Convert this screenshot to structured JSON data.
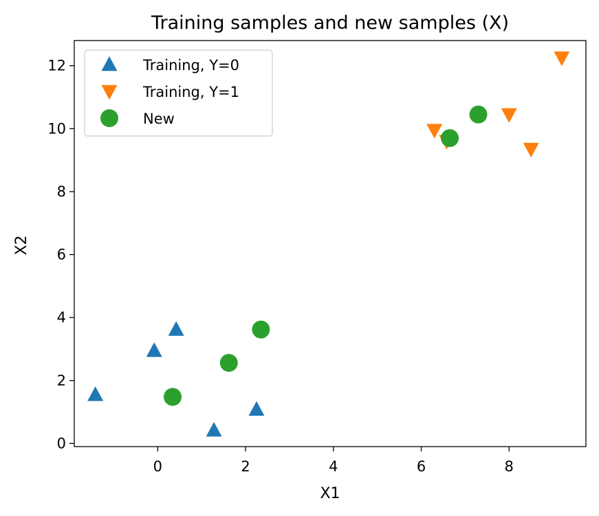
{
  "chart_data": {
    "type": "scatter",
    "title": "Training samples and new samples (X)",
    "xlabel": "X1",
    "ylabel": "X2",
    "xlim": [
      -1.9,
      9.75
    ],
    "ylim": [
      -0.1,
      12.8
    ],
    "xticks": [
      0,
      2,
      4,
      6,
      8
    ],
    "yticks": [
      0,
      2,
      4,
      6,
      8,
      10,
      12
    ],
    "grid": false,
    "legend_position": "upper-left",
    "series": [
      {
        "name": "Training, Y=0",
        "marker": "triangle-up",
        "color": "#1f77b4",
        "points": [
          {
            "x": -1.42,
            "y": 1.55
          },
          {
            "x": -0.08,
            "y": 2.95
          },
          {
            "x": 0.42,
            "y": 3.62
          },
          {
            "x": 1.28,
            "y": 0.42
          },
          {
            "x": 2.25,
            "y": 1.08
          }
        ]
      },
      {
        "name": "Training, Y=1",
        "marker": "triangle-down",
        "color": "#ff7f0e",
        "points": [
          {
            "x": 6.3,
            "y": 9.95
          },
          {
            "x": 6.58,
            "y": 9.6
          },
          {
            "x": 8.0,
            "y": 10.45
          },
          {
            "x": 8.5,
            "y": 9.35
          },
          {
            "x": 9.2,
            "y": 12.25
          }
        ]
      },
      {
        "name": "New",
        "marker": "circle",
        "color": "#2ca02c",
        "points": [
          {
            "x": 0.34,
            "y": 1.48
          },
          {
            "x": 1.62,
            "y": 2.56
          },
          {
            "x": 2.35,
            "y": 3.62
          },
          {
            "x": 6.65,
            "y": 9.7
          },
          {
            "x": 7.3,
            "y": 10.45
          }
        ]
      }
    ]
  }
}
